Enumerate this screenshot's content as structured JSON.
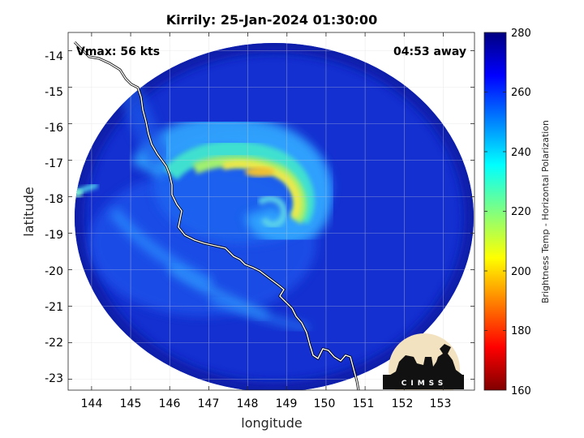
{
  "title": "Kirrily: 25-Jan-2024 01:30:00",
  "vmax_text": "Vmax: 56 kts",
  "away_text": "04:53 away",
  "axes": {
    "xlabel": "longitude",
    "ylabel": "latitude",
    "x_ticks": [
      "144",
      "145",
      "146",
      "147",
      "148",
      "149",
      "150",
      "151",
      "152",
      "153"
    ],
    "y_ticks": [
      "-14",
      "-15",
      "-16",
      "-17",
      "-18",
      "-19",
      "-20",
      "-21",
      "-22",
      "-23"
    ],
    "xlim": [
      143.4,
      153.8
    ],
    "ylim": [
      -23.3,
      -13.5
    ]
  },
  "colorbar": {
    "label": "Brightness Temp - Horizontal Polarization",
    "ticks": [
      "280",
      "260",
      "240",
      "220",
      "200",
      "180",
      "160"
    ],
    "range": [
      160,
      280
    ],
    "colormap": "jet"
  },
  "logo": {
    "text": "CIMSS"
  },
  "colors": {
    "background_field": "#1430d0",
    "outside_swath": "#ffffff",
    "coastline": "#ffffff",
    "grid": "#d9d9d9"
  }
}
